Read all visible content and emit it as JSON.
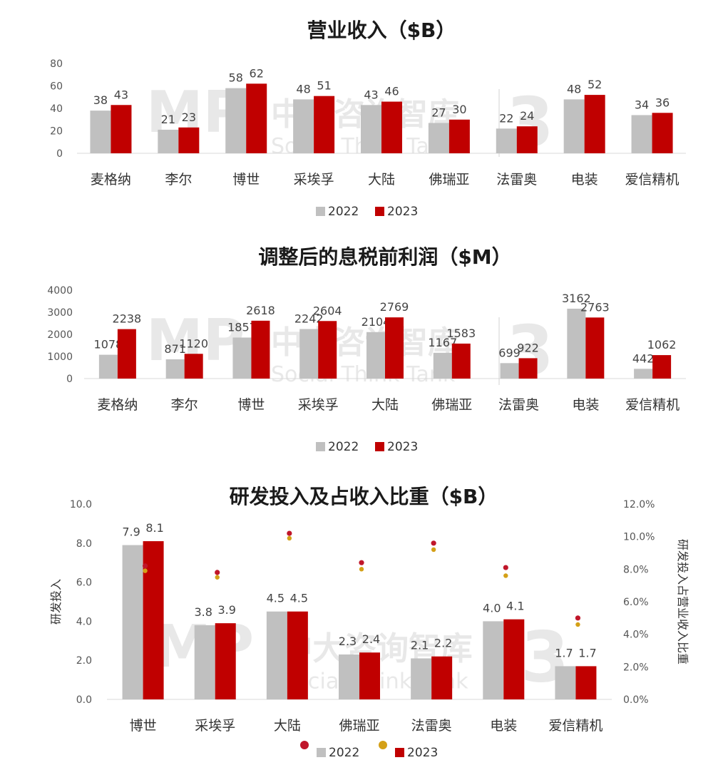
{
  "colors": {
    "y2022": "#c0c0c0",
    "y2023": "#c00000",
    "dot2022": "#d4a017",
    "dot2023": "#c0162a"
  },
  "watermark": {
    "logo": "MP",
    "name": "中大咨询智库",
    "sub": "Social Think Tank",
    "mark": "3"
  },
  "chart_data": [
    {
      "type": "bar",
      "title": "营业收入（$B）",
      "categories": [
        "麦格纳",
        "李尔",
        "博世",
        "采埃孚",
        "大陆",
        "佛瑞亚",
        "法雷奥",
        "电装",
        "爱信精机"
      ],
      "series": [
        {
          "name": "2022",
          "values": [
            38,
            21,
            58,
            48,
            43,
            27,
            22,
            48,
            34
          ]
        },
        {
          "name": "2023",
          "values": [
            43,
            23,
            62,
            51,
            46,
            30,
            24,
            52,
            36
          ]
        }
      ],
      "ylim": [
        0,
        80
      ],
      "yticks": [
        "0",
        "20",
        "40",
        "60",
        "80"
      ],
      "legend": "bottom"
    },
    {
      "type": "bar",
      "title": "调整后的息税前利润（$M）",
      "categories": [
        "麦格纳",
        "李尔",
        "博世",
        "采埃孚",
        "大陆",
        "佛瑞亚",
        "法雷奥",
        "电装",
        "爱信精机"
      ],
      "series": [
        {
          "name": "2022",
          "values": [
            1078,
            871,
            1857,
            2242,
            2104,
            1167,
            699,
            3162,
            442
          ]
        },
        {
          "name": "2023",
          "values": [
            2238,
            1120,
            2618,
            2604,
            2769,
            1583,
            922,
            2763,
            1062
          ]
        }
      ],
      "ylim": [
        0,
        4000
      ],
      "yticks": [
        "0",
        "1000",
        "2000",
        "3000",
        "4000"
      ],
      "legend": "bottom"
    },
    {
      "type": "bar",
      "title": "研发投入及占收入比重（$B）",
      "ylabel": "研发投入",
      "y2label": "研发投入占营业收入比重",
      "categories": [
        "博世",
        "采埃孚",
        "大陆",
        "佛瑞亚",
        "法雷奥",
        "电装",
        "爱信精机"
      ],
      "series": [
        {
          "name": "2022",
          "values": [
            7.9,
            3.8,
            4.5,
            2.3,
            2.1,
            4.0,
            1.7
          ]
        },
        {
          "name": "2023",
          "values": [
            8.1,
            3.9,
            4.5,
            2.4,
            2.2,
            4.1,
            1.7
          ]
        }
      ],
      "ratio_series": [
        {
          "name": "2022",
          "values": [
            7.9,
            7.5,
            9.9,
            8.0,
            9.2,
            7.6,
            4.6
          ]
        },
        {
          "name": "2023",
          "values": [
            8.2,
            7.8,
            10.2,
            8.4,
            9.6,
            8.1,
            5.0
          ]
        }
      ],
      "ylim": [
        0,
        10
      ],
      "y2lim": [
        0,
        12
      ],
      "yticks": [
        "0.0",
        "2.0",
        "4.0",
        "6.0",
        "8.0",
        "10.0"
      ],
      "y2ticks": [
        "0.0%",
        "2.0%",
        "4.0%",
        "6.0%",
        "8.0%",
        "10.0%",
        "12.0%"
      ],
      "legend": "bottom"
    }
  ]
}
